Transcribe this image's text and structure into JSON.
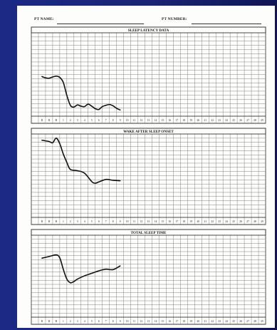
{
  "form": {
    "pt_name_label": "PT NAME:",
    "pt_number_label": "PT NUMBER:"
  },
  "x_tick_labels": [
    "B",
    "B",
    "B",
    "1",
    "2",
    "3",
    "4",
    "5",
    "6",
    "7",
    "8",
    "9",
    "10",
    "11",
    "12",
    "13",
    "14",
    "15",
    "16",
    "17",
    "18",
    "19",
    "20",
    "21",
    "22",
    "23",
    "24",
    "25",
    "26",
    "27",
    "28",
    "29"
  ],
  "chart_data": [
    {
      "type": "line",
      "title": "SLEEP LATENCY DATA",
      "xlabel": "",
      "ylabel": "",
      "ylim": [
        0,
        20
      ],
      "grid": true,
      "series": [
        {
          "x": [
            0,
            0.5,
            1,
            1.5,
            2,
            2.5,
            3,
            3.5,
            4,
            4.5,
            5,
            5.5,
            6,
            6.5,
            7,
            7.5,
            8,
            8.5,
            9,
            9.5,
            10,
            10.5,
            11
          ],
          "values": [
            9.5,
            9.2,
            9.1,
            9.4,
            9.6,
            9.3,
            8.1,
            5.0,
            2.6,
            2.2,
            2.7,
            2.4,
            2.3,
            2.9,
            2.4,
            1.8,
            1.6,
            2.3,
            2.6,
            2.8,
            2.5,
            1.9,
            1.5
          ]
        }
      ]
    },
    {
      "type": "line",
      "title": "WAKE AFTER SLEEP ONSET",
      "xlabel": "",
      "ylabel": "",
      "ylim": [
        0,
        20
      ],
      "grid": true,
      "series": [
        {
          "x": [
            0,
            1,
            1.5,
            2,
            2.5,
            3,
            3.5,
            4,
            5,
            6,
            7,
            7.5,
            8,
            9,
            10,
            11
          ],
          "values": [
            18.5,
            18.2,
            17.9,
            19.0,
            17.7,
            15.2,
            13.2,
            11.5,
            11.2,
            10.6,
            8.6,
            8.2,
            8.5,
            9.1,
            8.9,
            8.8
          ]
        }
      ]
    },
    {
      "type": "line",
      "title": "TOTAL SLEEP TIME",
      "xlabel": "",
      "ylabel": "",
      "ylim": [
        0,
        20
      ],
      "grid": true,
      "series": [
        {
          "x": [
            0,
            1,
            2,
            2.5,
            3,
            3.5,
            4,
            4.5,
            5,
            6,
            7,
            8,
            9,
            10,
            11
          ],
          "values": [
            14.4,
            14.8,
            15.2,
            14.5,
            11.7,
            9.3,
            8.4,
            8.7,
            9.3,
            10.1,
            10.7,
            11.3,
            11.7,
            11.6,
            12.5
          ]
        }
      ]
    }
  ]
}
